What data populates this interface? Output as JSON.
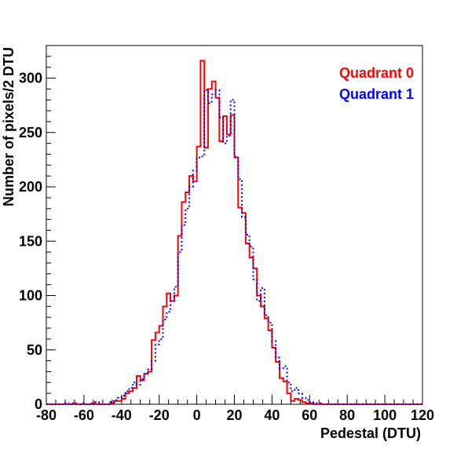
{
  "chart_data": {
    "type": "line",
    "title": "",
    "xlabel": "Pedestal (DTU)",
    "ylabel": "Number of pixels/2 DTU",
    "xlim": [
      -80,
      120
    ],
    "ylim": [
      0,
      330
    ],
    "bin_width": 2,
    "x_ticks": [
      "-80",
      "-60",
      "-40",
      "-20",
      "0",
      "20",
      "40",
      "60",
      "80",
      "100",
      "120"
    ],
    "y_ticks": [
      "0",
      "50",
      "100",
      "150",
      "200",
      "250",
      "300"
    ],
    "legend_position": "top-right",
    "series": [
      {
        "name": "Quadrant 0",
        "color": "#ff0000",
        "style": "solid",
        "bin_edges_start": -80,
        "values": [
          0,
          0,
          0,
          0,
          0,
          0,
          0,
          1,
          0,
          0,
          0,
          0,
          1,
          0,
          0,
          0,
          0,
          1,
          3,
          3,
          5,
          10,
          12,
          15,
          26,
          22,
          28,
          30,
          59,
          66,
          72,
          90,
          102,
          95,
          100,
          155,
          186,
          195,
          210,
          205,
          237,
          316,
          236,
          290,
          297,
          282,
          242,
          265,
          248,
          266,
          227,
          181,
          176,
          148,
          135,
          125,
          100,
          90,
          79,
          68,
          52,
          39,
          24,
          21,
          10,
          3,
          5,
          4,
          2,
          1,
          1,
          0,
          0,
          0,
          0,
          0,
          0,
          0,
          0,
          0,
          0,
          0,
          0,
          0,
          0,
          0,
          0,
          0,
          0,
          0,
          0,
          0,
          0,
          0,
          0,
          0,
          0,
          0,
          0,
          0
        ]
      },
      {
        "name": "Quadrant 1",
        "color": "#0000ff",
        "style": "dotted",
        "bin_edges_start": -80,
        "values": [
          0,
          0,
          0,
          0,
          0,
          1,
          0,
          0,
          0,
          1,
          0,
          0,
          0,
          2,
          0,
          0,
          0,
          2,
          4,
          6,
          8,
          12,
          15,
          20,
          18,
          23,
          28,
          32,
          40,
          55,
          60,
          78,
          85,
          95,
          108,
          140,
          165,
          180,
          200,
          215,
          227,
          228,
          289,
          277,
          285,
          289,
          264,
          240,
          247,
          280,
          228,
          207,
          172,
          156,
          145,
          115,
          95,
          107,
          82,
          75,
          58,
          43,
          33,
          35,
          20,
          12,
          15,
          10,
          6,
          4,
          2,
          1,
          1,
          0,
          0,
          0,
          0,
          0,
          0,
          0,
          0,
          0,
          0,
          0,
          0,
          0,
          0,
          0,
          0,
          0,
          0,
          0,
          0,
          0,
          0,
          0,
          0,
          0,
          0,
          0
        ]
      }
    ]
  }
}
